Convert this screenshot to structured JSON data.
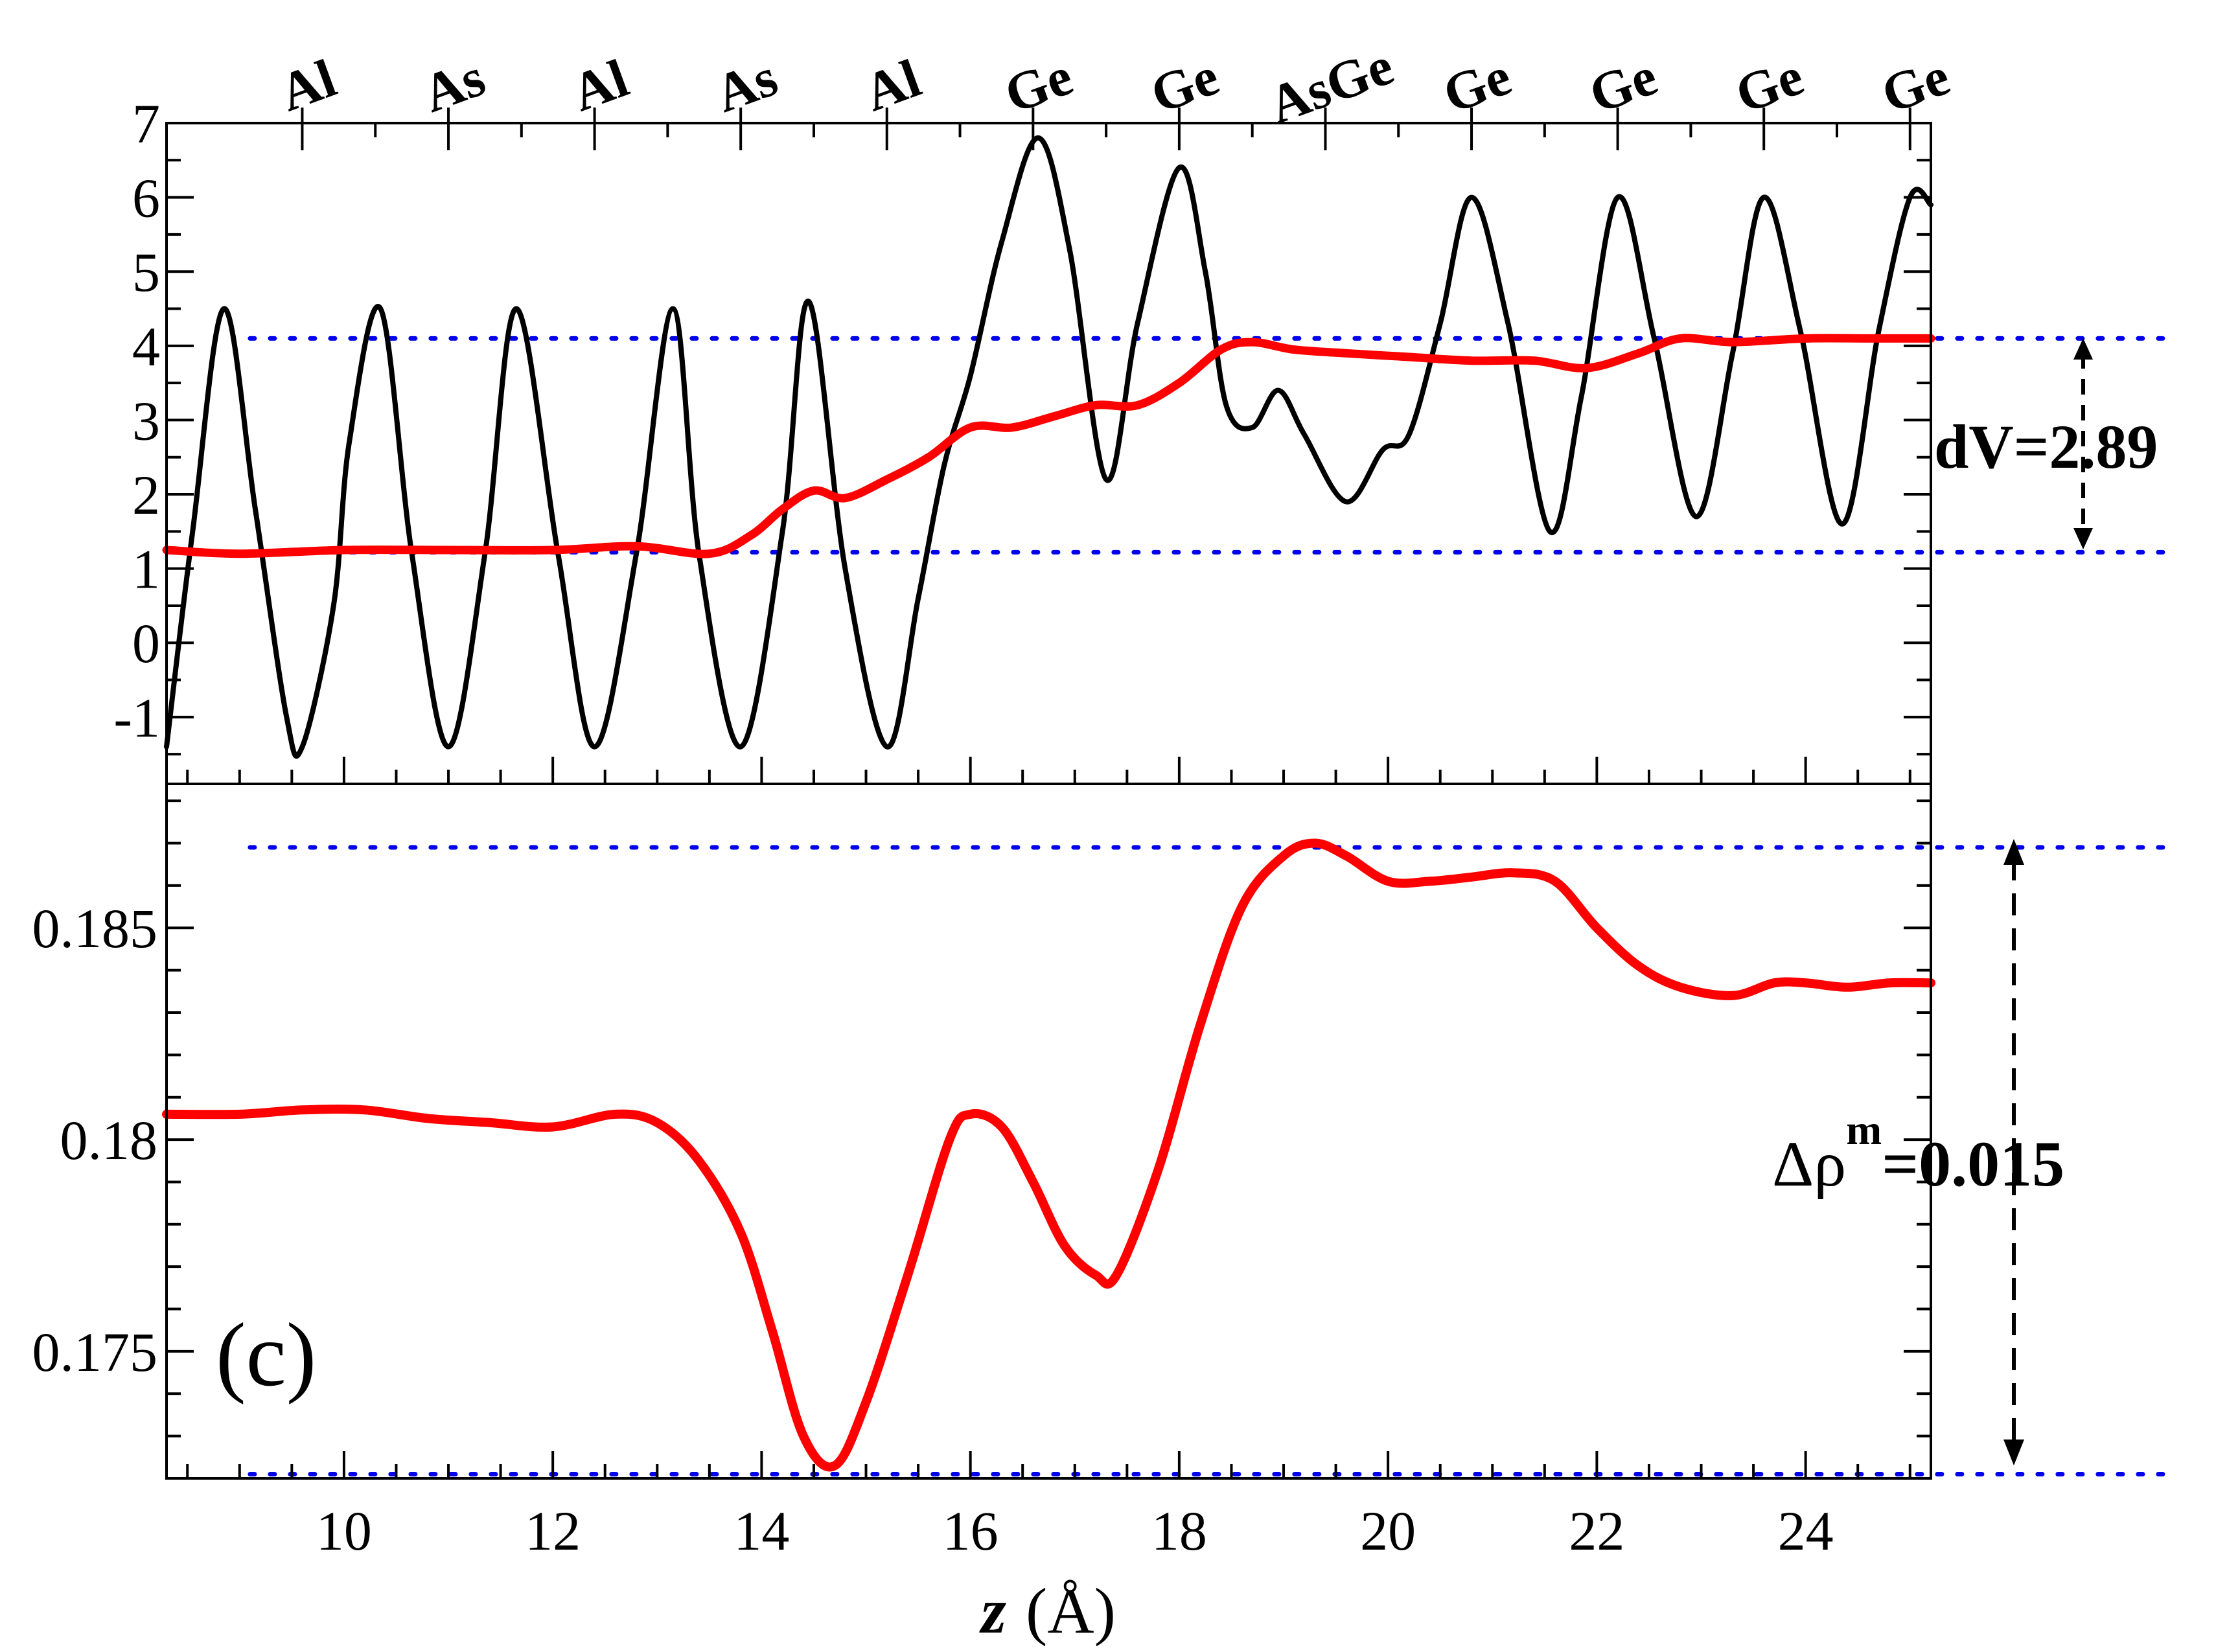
{
  "chart_data": [
    {
      "type": "line",
      "panel": "top",
      "xlim": [
        8.3,
        25.2
      ],
      "ylim": [
        -1.9,
        7
      ],
      "yticks": [
        -1,
        0,
        1,
        2,
        3,
        4,
        5,
        6,
        7
      ],
      "ytick_labels": [
        "-1",
        "0",
        "1",
        "2",
        "3",
        "4",
        "5",
        "6",
        "7"
      ],
      "atom_labels": [
        {
          "x": 9.6,
          "label": "Al"
        },
        {
          "x": 11.0,
          "label": "As"
        },
        {
          "x": 12.4,
          "label": "Al"
        },
        {
          "x": 13.8,
          "label": "As"
        },
        {
          "x": 15.2,
          "label": "Al"
        },
        {
          "x": 16.6,
          "label": "Ge"
        },
        {
          "x": 18.0,
          "label": "Ge"
        },
        {
          "x": 19.4,
          "label": "AsGe"
        },
        {
          "x": 20.8,
          "label": "Ge"
        },
        {
          "x": 22.2,
          "label": "Ge"
        },
        {
          "x": 23.6,
          "label": "Ge"
        },
        {
          "x": 25.0,
          "label": "Ge"
        }
      ],
      "series": [
        {
          "color": "#000000",
          "x": [
            8.3,
            8.55,
            8.85,
            9.15,
            9.45,
            9.6,
            9.9,
            10.05,
            10.35,
            10.65,
            11.0,
            11.35,
            11.65,
            12.05,
            12.4,
            12.8,
            13.15,
            13.4,
            13.8,
            14.2,
            14.45,
            14.8,
            15.2,
            15.5,
            15.75,
            16.0,
            16.3,
            16.65,
            16.95,
            17.3,
            17.6,
            18.0,
            18.25,
            18.45,
            18.7,
            18.95,
            19.2,
            19.6,
            19.95,
            20.2,
            20.5,
            20.8,
            21.15,
            21.55,
            21.85,
            22.2,
            22.55,
            22.95,
            23.3,
            23.6,
            23.95,
            24.35,
            24.7,
            25.0,
            25.2
          ],
          "y": [
            -1.4,
            1.5,
            4.5,
            1.8,
            -1.0,
            -1.4,
            0.5,
            2.7,
            4.5,
            1.2,
            -1.4,
            1.2,
            4.5,
            1.2,
            -1.4,
            1.2,
            4.5,
            1.2,
            -1.4,
            1.5,
            4.6,
            1.0,
            -1.4,
            0.6,
            2.4,
            3.6,
            5.4,
            6.8,
            5.3,
            2.2,
            4.3,
            6.4,
            5.0,
            3.2,
            2.9,
            3.4,
            2.8,
            1.9,
            2.6,
            2.8,
            4.3,
            6.0,
            4.3,
            1.5,
            3.3,
            6.0,
            4.1,
            1.7,
            3.9,
            6.0,
            4.2,
            1.6,
            4.2,
            6.0,
            5.9
          ]
        },
        {
          "color": "#ff0000",
          "x": [
            8.3,
            9.0,
            10.0,
            11.0,
            12.0,
            12.8,
            13.5,
            13.9,
            14.2,
            14.5,
            14.8,
            15.2,
            15.6,
            16.0,
            16.4,
            16.8,
            17.2,
            17.6,
            18.0,
            18.4,
            18.7,
            19.1,
            19.6,
            20.2,
            20.8,
            21.4,
            21.9,
            22.4,
            22.8,
            23.3,
            24.0,
            24.6,
            25.2
          ],
          "y": [
            1.25,
            1.2,
            1.25,
            1.25,
            1.25,
            1.3,
            1.2,
            1.45,
            1.8,
            2.05,
            1.95,
            2.2,
            2.5,
            2.9,
            2.9,
            3.05,
            3.2,
            3.2,
            3.5,
            3.95,
            4.05,
            3.95,
            3.9,
            3.85,
            3.8,
            3.8,
            3.7,
            3.9,
            4.1,
            4.05,
            4.1,
            4.1,
            4.1
          ]
        }
      ],
      "reference_lines_y": [
        4.1,
        1.22
      ],
      "annotation": "dV=2.89"
    },
    {
      "type": "line",
      "panel": "bottom",
      "xlim": [
        8.3,
        25.2
      ],
      "ylim": [
        0.172,
        0.1884
      ],
      "xticks": [
        10,
        12,
        14,
        16,
        18,
        20,
        22,
        24
      ],
      "xtick_labels": [
        "10",
        "12",
        "14",
        "16",
        "18",
        "20",
        "22",
        "24"
      ],
      "yticks": [
        0.175,
        0.18,
        0.185
      ],
      "ytick_labels": [
        "0.175",
        "0.18",
        "0.185"
      ],
      "xlabel_italic": "z",
      "xlabel_unit": "(Å)",
      "series": [
        {
          "color": "#ff0000",
          "x": [
            8.3,
            9.0,
            9.6,
            10.2,
            10.8,
            11.4,
            12.0,
            12.6,
            13.0,
            13.4,
            13.8,
            14.1,
            14.4,
            14.7,
            15.0,
            15.4,
            15.8,
            16.0,
            16.3,
            16.6,
            16.9,
            17.2,
            17.4,
            17.8,
            18.2,
            18.6,
            19.0,
            19.3,
            19.6,
            20.0,
            20.4,
            20.8,
            21.2,
            21.6,
            22.0,
            22.4,
            22.8,
            23.3,
            23.7,
            24.0,
            24.4,
            24.8,
            25.2
          ],
          "y": [
            0.1806,
            0.1806,
            0.1807,
            0.1807,
            0.1805,
            0.1804,
            0.1803,
            0.1806,
            0.1804,
            0.1795,
            0.1778,
            0.1755,
            0.173,
            0.1723,
            0.1738,
            0.1768,
            0.18,
            0.1806,
            0.1803,
            0.179,
            0.1775,
            0.1768,
            0.1768,
            0.1793,
            0.1827,
            0.1855,
            0.1867,
            0.187,
            0.1867,
            0.1861,
            0.1861,
            0.1862,
            0.1863,
            0.1861,
            0.185,
            0.1841,
            0.1836,
            0.1834,
            0.1837,
            0.1837,
            0.1836,
            0.1837,
            0.1837
          ]
        }
      ],
      "reference_lines_y": [
        0.1869,
        0.1721
      ],
      "annotation_main": "Δρ",
      "annotation_sup": "m",
      "annotation_value": "=0.015",
      "panel_label": "(c)"
    }
  ]
}
